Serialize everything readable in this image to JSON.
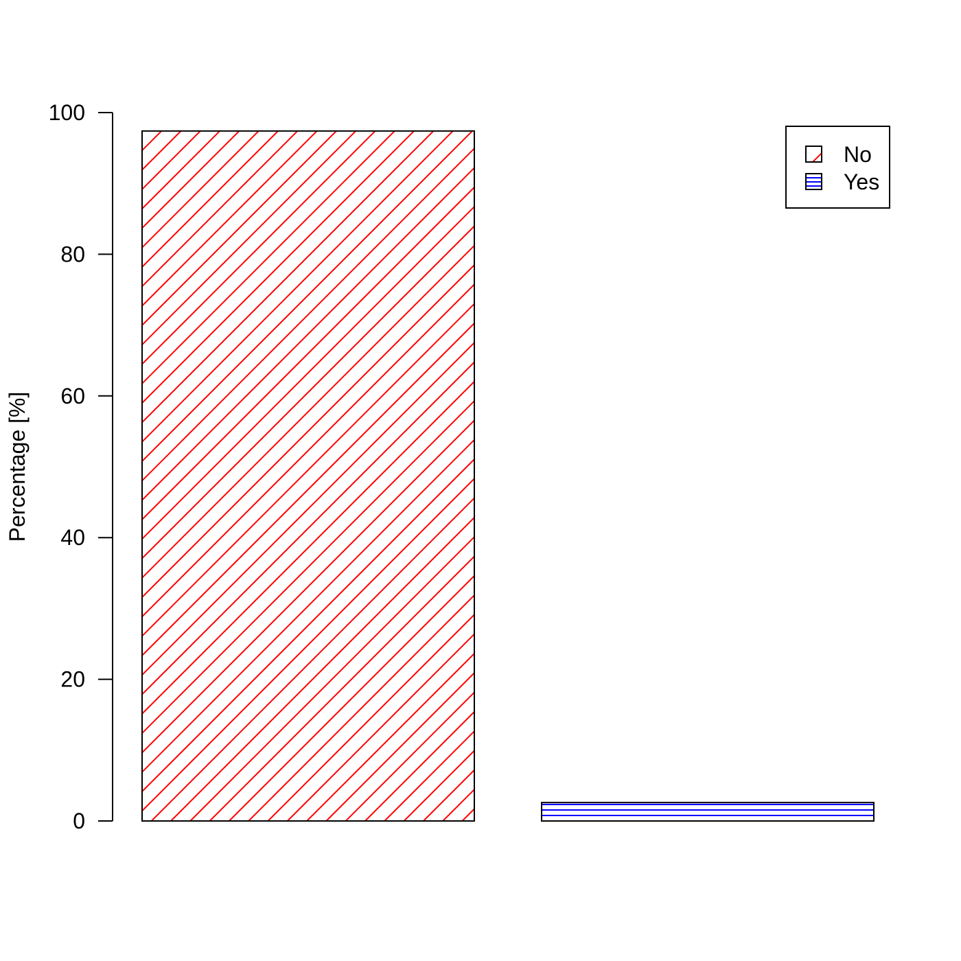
{
  "chart_data": {
    "type": "bar",
    "title": "",
    "xlabel": "",
    "ylabel": "Percentage [%]",
    "ylim": [
      0,
      100
    ],
    "yticks": [
      0,
      20,
      40,
      60,
      80,
      100
    ],
    "grid": false,
    "legend_position": "top-right",
    "categories": [
      "No",
      "Yes"
    ],
    "series": [
      {
        "name": "Percentage",
        "values": [
          97.4,
          2.6
        ]
      }
    ],
    "legend": [
      {
        "label": "No",
        "pattern": "diagonal-hatch",
        "color": "#ff0000"
      },
      {
        "label": "Yes",
        "pattern": "horizontal-hatch",
        "color": "#0000ff"
      }
    ]
  }
}
